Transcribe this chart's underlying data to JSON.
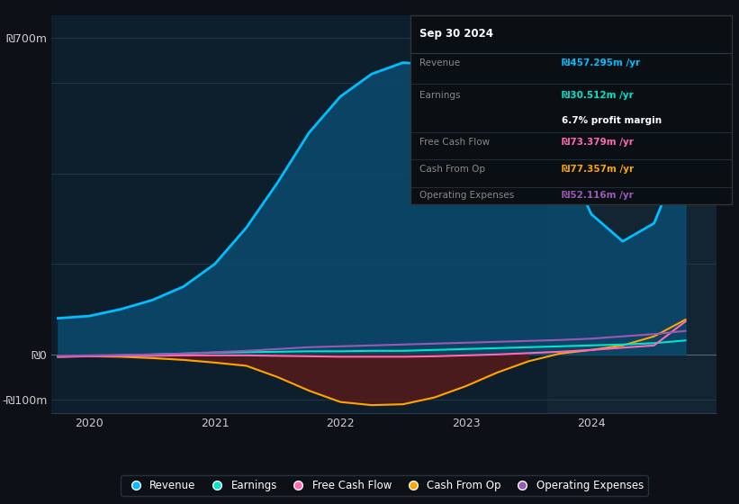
{
  "bg_color": "#0d1117",
  "plot_bg_color": "#0d1f2d",
  "grid_color": "#1e3a4a",
  "ylabel_700": "₪700m",
  "ylabel_0": "₪0",
  "ylabel_neg100": "-₪100m",
  "xlabel_labels": [
    "2020",
    "2021",
    "2022",
    "2023",
    "2024"
  ],
  "ylim": [
    -130,
    750
  ],
  "xlim": [
    2019.7,
    2025.0
  ],
  "revenue_color": "#00bfff",
  "revenue_fill_color": "#0a4a6e",
  "earnings_color": "#00e5cc",
  "fcf_color": "#ff69b4",
  "cashfromop_color": "#ffa500",
  "cashfromop_fill_color": "#5a1a1a",
  "opex_color": "#9b59b6",
  "legend_bg": "#0d1117",
  "legend_border": "#2a3a4a",
  "info_box_bg": "#0a0f14",
  "info_box_border": "#333333",
  "info_title": "Sep 30 2024",
  "info_revenue_label": "Revenue",
  "info_revenue_value": "₪457.295m /yr",
  "info_revenue_color": "#00bfff",
  "info_earnings_label": "Earnings",
  "info_earnings_value": "₪30.512m /yr",
  "info_earnings_color": "#00e5cc",
  "info_margin_text": "6.7% profit margin",
  "info_fcf_label": "Free Cash Flow",
  "info_fcf_value": "₪73.379m /yr",
  "info_fcf_color": "#ff69b4",
  "info_cashop_label": "Cash From Op",
  "info_cashop_value": "₪77.357m /yr",
  "info_cashop_color": "#ffa500",
  "info_opex_label": "Operating Expenses",
  "info_opex_value": "₪52.116m /yr",
  "info_opex_color": "#9b59b6",
  "revenue_x": [
    2019.75,
    2020.0,
    2020.25,
    2020.5,
    2020.75,
    2021.0,
    2021.25,
    2021.5,
    2021.75,
    2022.0,
    2022.25,
    2022.5,
    2022.75,
    2023.0,
    2023.25,
    2023.5,
    2023.75,
    2024.0,
    2024.25,
    2024.5,
    2024.75
  ],
  "revenue_y": [
    80,
    85,
    100,
    120,
    150,
    200,
    280,
    380,
    490,
    570,
    620,
    645,
    640,
    620,
    580,
    530,
    460,
    310,
    250,
    290,
    460
  ],
  "earnings_x": [
    2019.75,
    2020.0,
    2020.25,
    2020.5,
    2020.75,
    2021.0,
    2021.25,
    2021.5,
    2021.75,
    2022.0,
    2022.25,
    2022.5,
    2022.75,
    2023.0,
    2023.25,
    2023.5,
    2023.75,
    2024.0,
    2024.25,
    2024.5,
    2024.75
  ],
  "earnings_y": [
    -5,
    -3,
    -2,
    0,
    2,
    4,
    5,
    6,
    7,
    7,
    8,
    8,
    10,
    12,
    14,
    16,
    18,
    20,
    22,
    25,
    31
  ],
  "fcf_x": [
    2019.75,
    2020.0,
    2020.25,
    2020.5,
    2020.75,
    2021.0,
    2021.25,
    2021.5,
    2021.75,
    2022.0,
    2022.25,
    2022.5,
    2022.75,
    2023.0,
    2023.25,
    2023.5,
    2023.75,
    2024.0,
    2024.25,
    2024.5,
    2024.75
  ],
  "fcf_y": [
    -5,
    -4,
    -3,
    -3,
    -2,
    -2,
    -2,
    -3,
    -4,
    -5,
    -5,
    -5,
    -4,
    -2,
    0,
    3,
    6,
    10,
    15,
    20,
    73
  ],
  "cashop_x": [
    2019.75,
    2020.0,
    2020.25,
    2020.5,
    2020.75,
    2021.0,
    2021.25,
    2021.5,
    2021.75,
    2022.0,
    2022.25,
    2022.5,
    2022.75,
    2023.0,
    2023.25,
    2023.5,
    2023.75,
    2024.0,
    2024.25,
    2024.5,
    2024.75
  ],
  "cashop_y": [
    -5,
    -4,
    -5,
    -8,
    -12,
    -18,
    -25,
    -50,
    -80,
    -105,
    -112,
    -110,
    -95,
    -70,
    -40,
    -15,
    2,
    10,
    20,
    40,
    77
  ],
  "opex_x": [
    2019.75,
    2020.0,
    2020.25,
    2020.5,
    2020.75,
    2021.0,
    2021.25,
    2021.5,
    2021.75,
    2022.0,
    2022.25,
    2022.5,
    2022.75,
    2023.0,
    2023.25,
    2023.5,
    2023.75,
    2024.0,
    2024.25,
    2024.5,
    2024.75
  ],
  "opex_y": [
    -3,
    -2,
    -1,
    0,
    2,
    5,
    8,
    12,
    16,
    18,
    20,
    22,
    24,
    26,
    28,
    30,
    32,
    35,
    40,
    45,
    52
  ],
  "zero_line_color": "#cccccc",
  "shaded_region_color": "#1a2a3a",
  "divider_color": "#2a3a4a"
}
